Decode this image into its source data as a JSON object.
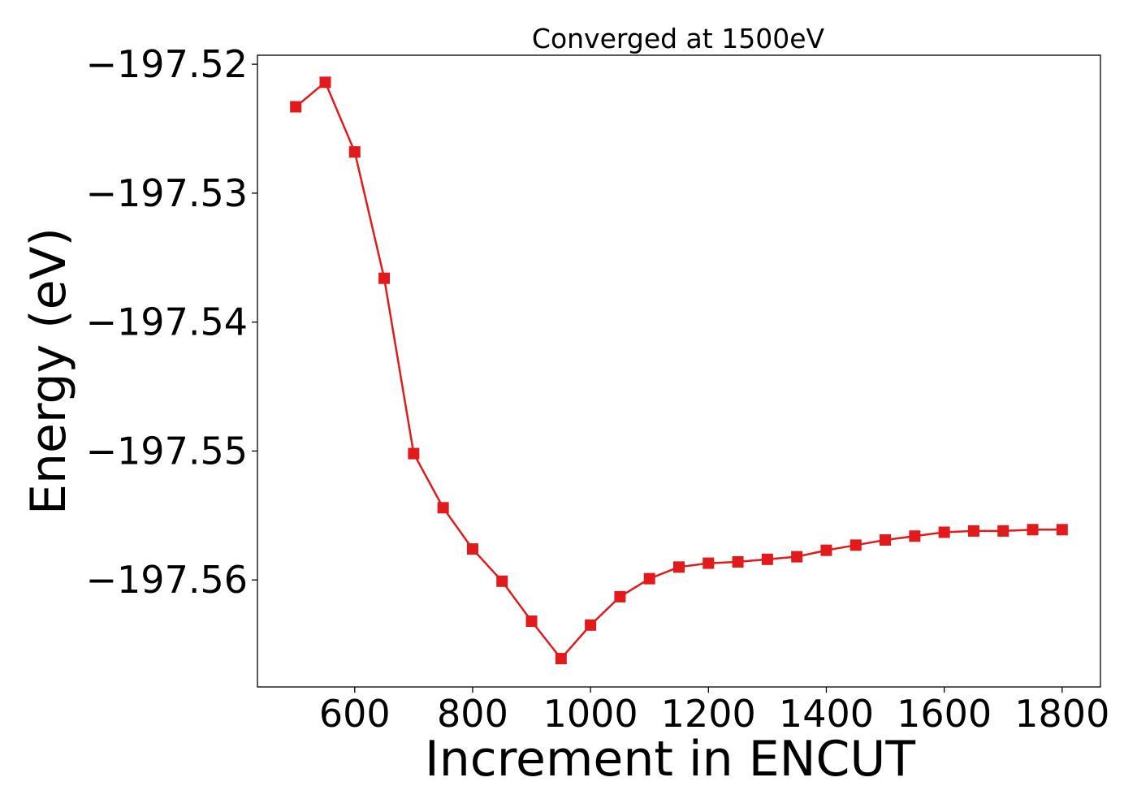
{
  "chart_data": {
    "type": "line",
    "title": "Converged at 1500eV",
    "xlabel": "Increment in ENCUT",
    "ylabel": "Energy (eV)",
    "x_ticks": [
      "600",
      "800",
      "1000",
      "1200",
      "1400",
      "1600",
      "1800"
    ],
    "y_ticks": [
      "−197.52",
      "−197.53",
      "−197.54",
      "−197.55",
      "−197.56"
    ],
    "xlim": [
      435,
      1865
    ],
    "ylim": [
      -197.5683,
      -197.5193
    ],
    "grid": false,
    "marker": "square",
    "series": [
      {
        "color": "#e31a1c",
        "x": [
          500,
          550,
          600,
          650,
          700,
          750,
          800,
          850,
          900,
          950,
          1000,
          1050,
          1100,
          1150,
          1200,
          1250,
          1300,
          1350,
          1400,
          1450,
          1500,
          1550,
          1600,
          1650,
          1700,
          1750,
          1800
        ],
        "y": [
          -197.5233,
          -197.5214,
          -197.5268,
          -197.5366,
          -197.5502,
          -197.5544,
          -197.5576,
          -197.5601,
          -197.5632,
          -197.5661,
          -197.5635,
          -197.5613,
          -197.5599,
          -197.559,
          -197.5587,
          -197.5586,
          -197.5584,
          -197.5582,
          -197.5577,
          -197.5573,
          -197.5569,
          -197.5566,
          -197.5563,
          -197.5562,
          -197.5562,
          -197.5561,
          -197.5561
        ]
      }
    ]
  }
}
